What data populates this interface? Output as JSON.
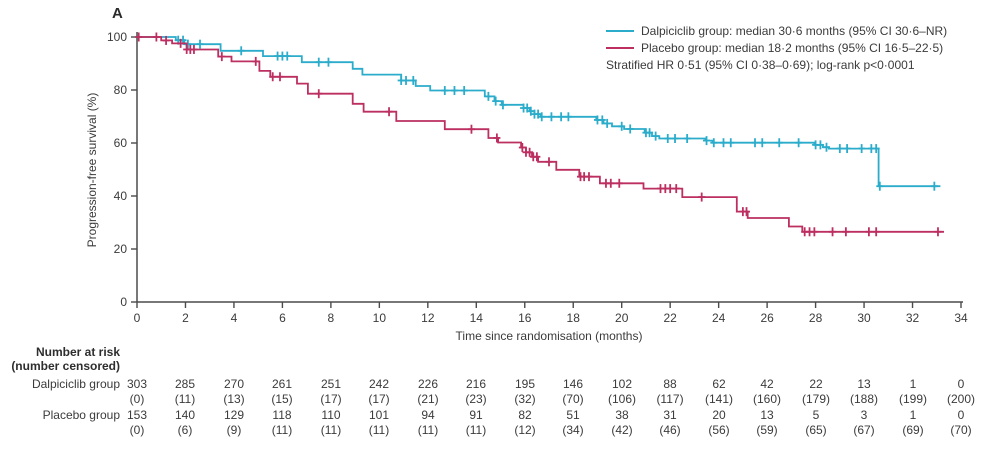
{
  "panel_label": "A",
  "legend": {
    "items": [
      {
        "name": "Dalpiciclib group",
        "label": "Dalpiciclib group: median 30·6 months (95% CI 30·6–NR)",
        "color": "#2baccb"
      },
      {
        "name": "Placebo group",
        "label": "Placebo group: median 18·2 months (95% CI 16·5–22·5)",
        "color": "#bc2f60"
      }
    ],
    "note": "Stratified HR 0·51 (95% CI 0·38–0·69); log-rank p<0·0001"
  },
  "chart_data": {
    "type": "line",
    "subtype": "kaplan-meier-step",
    "title": "",
    "xlabel": "Time since randomisation (months)",
    "ylabel": "Progression-free survival (%)",
    "xlim": [
      0,
      34
    ],
    "ylim": [
      0,
      100
    ],
    "x_ticks": [
      0,
      2,
      4,
      6,
      8,
      10,
      12,
      14,
      16,
      18,
      20,
      22,
      24,
      26,
      28,
      30,
      32,
      34
    ],
    "y_ticks": [
      0,
      20,
      40,
      60,
      80,
      100
    ],
    "grid": false,
    "legend_position": "top-right",
    "series": [
      {
        "name": "Dalpiciclib group",
        "color": "#2baccb",
        "steps": [
          [
            0,
            100
          ],
          [
            1.6,
            98.8
          ],
          [
            1.95,
            97.3
          ],
          [
            3.45,
            94.8
          ],
          [
            5.2,
            92.8
          ],
          [
            6.8,
            90.5
          ],
          [
            8.9,
            88.0
          ],
          [
            9.3,
            85.8
          ],
          [
            10.9,
            83.6
          ],
          [
            11.5,
            81.5
          ],
          [
            12.1,
            79.8
          ],
          [
            14.35,
            77.6
          ],
          [
            14.75,
            75.8
          ],
          [
            15.05,
            74.4
          ],
          [
            15.95,
            73.2
          ],
          [
            16.2,
            72.0
          ],
          [
            16.4,
            70.9
          ],
          [
            16.65,
            69.9
          ],
          [
            18.95,
            68.7
          ],
          [
            19.25,
            67.4
          ],
          [
            19.6,
            66.3
          ],
          [
            20.1,
            65.3
          ],
          [
            20.95,
            63.9
          ],
          [
            21.25,
            62.6
          ],
          [
            21.55,
            61.7
          ],
          [
            23.45,
            60.9
          ],
          [
            23.75,
            60.1
          ],
          [
            27.95,
            59.3
          ],
          [
            28.3,
            58.4
          ],
          [
            28.55,
            57.9
          ],
          [
            30.6,
            43.7
          ]
        ],
        "end": 33.15,
        "censors": [
          1.7,
          1.9,
          2.1,
          2.6,
          4.3,
          5.8,
          6.0,
          6.2,
          7.5,
          7.9,
          10.9,
          11.1,
          11.4,
          12.7,
          13.1,
          13.5,
          14.5,
          14.8,
          15.1,
          15.95,
          16.1,
          16.25,
          16.4,
          16.55,
          16.7,
          17.1,
          17.5,
          17.8,
          19.0,
          19.2,
          19.4,
          20.0,
          20.35,
          21.0,
          21.15,
          21.4,
          21.9,
          22.2,
          22.7,
          23.5,
          23.8,
          24.2,
          24.5,
          25.5,
          25.8,
          26.5,
          27.3,
          28.0,
          28.2,
          28.45,
          29.0,
          29.3,
          29.9,
          30.3,
          30.5,
          30.65,
          32.9
        ]
      },
      {
        "name": "Placebo group",
        "color": "#bc2f60",
        "steps": [
          [
            0,
            100
          ],
          [
            1.0,
            98.7
          ],
          [
            1.45,
            97.6
          ],
          [
            2.05,
            95.3
          ],
          [
            3.35,
            92.6
          ],
          [
            3.9,
            90.8
          ],
          [
            5.05,
            87.2
          ],
          [
            5.5,
            85.0
          ],
          [
            6.6,
            82.4
          ],
          [
            7.05,
            78.6
          ],
          [
            8.9,
            74.8
          ],
          [
            9.35,
            71.8
          ],
          [
            10.7,
            68.3
          ],
          [
            12.7,
            65.2
          ],
          [
            14.5,
            61.9
          ],
          [
            14.9,
            60.2
          ],
          [
            15.85,
            58.3
          ],
          [
            16.05,
            56.5
          ],
          [
            16.3,
            54.8
          ],
          [
            16.55,
            52.9
          ],
          [
            17.3,
            49.9
          ],
          [
            18.25,
            47.3
          ],
          [
            19.1,
            44.8
          ],
          [
            20.9,
            42.8
          ],
          [
            22.5,
            39.6
          ],
          [
            24.75,
            34.1
          ],
          [
            25.2,
            31.7
          ],
          [
            26.9,
            28.5
          ],
          [
            27.45,
            26.5
          ]
        ],
        "end": 33.3,
        "censors": [
          0.07,
          0.8,
          1.2,
          1.8,
          2.05,
          2.2,
          2.35,
          3.5,
          4.9,
          5.6,
          5.9,
          7.5,
          10.4,
          13.8,
          14.85,
          15.9,
          16.05,
          16.2,
          16.35,
          16.5,
          17.0,
          18.3,
          18.45,
          18.65,
          19.35,
          19.55,
          19.9,
          21.6,
          21.8,
          22.0,
          22.25,
          23.3,
          25.0,
          25.15,
          27.55,
          27.75,
          27.95,
          28.7,
          29.25,
          30.2,
          30.5,
          33.05
        ]
      }
    ]
  },
  "risk_table": {
    "header_line1": "Number at risk",
    "header_line2": "(number censored)",
    "time_points": [
      0,
      2,
      4,
      6,
      8,
      10,
      12,
      14,
      16,
      18,
      20,
      22,
      24,
      26,
      28,
      30,
      32,
      34
    ],
    "groups": [
      {
        "label": "Dalpiciclib group",
        "counts": [
          303,
          285,
          270,
          261,
          251,
          242,
          226,
          216,
          195,
          146,
          102,
          88,
          62,
          42,
          22,
          13,
          1,
          0
        ],
        "censored": [
          0,
          11,
          13,
          15,
          17,
          17,
          21,
          23,
          32,
          70,
          106,
          117,
          141,
          160,
          179,
          188,
          199,
          200
        ]
      },
      {
        "label": "Placebo group",
        "counts": [
          153,
          140,
          129,
          118,
          110,
          101,
          94,
          91,
          82,
          51,
          38,
          31,
          20,
          13,
          5,
          3,
          1,
          0
        ],
        "censored": [
          0,
          6,
          9,
          11,
          11,
          11,
          11,
          11,
          12,
          34,
          42,
          46,
          56,
          59,
          65,
          67,
          69,
          70
        ]
      }
    ]
  }
}
